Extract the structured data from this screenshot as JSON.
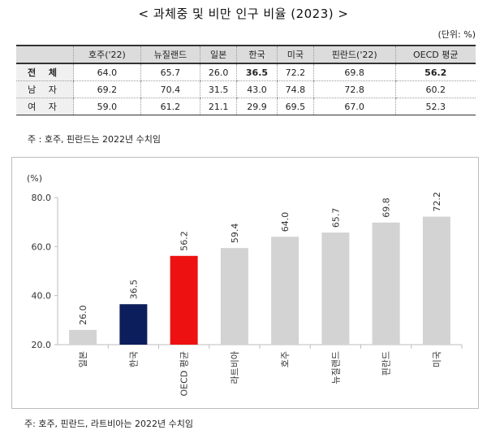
{
  "title": "< 과체중 및 비만 인구 비율 (2023) >",
  "unit": "(단위: %)",
  "table": {
    "headers": [
      "",
      "호주('22)",
      "뉴질랜드",
      "일본",
      "한국",
      "미국",
      "핀란드('22)",
      "OECD 평균"
    ],
    "rows": [
      {
        "label": "전 체",
        "values": [
          "64.0",
          "65.7",
          "26.0",
          "36.5",
          "72.2",
          "69.8",
          "56.2"
        ],
        "bold_cols": [
          3,
          6
        ]
      },
      {
        "label": "남 자",
        "values": [
          "69.2",
          "70.4",
          "31.5",
          "43.0",
          "74.8",
          "72.8",
          "60.2"
        ],
        "bold_cols": []
      },
      {
        "label": "여 자",
        "values": [
          "59.0",
          "61.2",
          "21.1",
          "29.9",
          "69.5",
          "67.0",
          "52.3"
        ],
        "bold_cols": []
      }
    ]
  },
  "note1": "주 : 호주, 핀란드는 2022년 수치임",
  "chart_data": {
    "type": "bar",
    "title": "",
    "ylabel": "(%)",
    "xlabel": "",
    "ylim": [
      20,
      80
    ],
    "yticks": [
      "20.0",
      "40.0",
      "60.0",
      "80.0"
    ],
    "ytick_values": [
      20,
      40,
      60,
      80
    ],
    "grid": false,
    "categories": [
      "일본",
      "한국",
      "OECD 평균",
      "라트비아",
      "호주",
      "뉴질랜드",
      "핀란드",
      "미국"
    ],
    "values": [
      26.0,
      36.5,
      56.2,
      59.4,
      64.0,
      65.7,
      69.8,
      72.2
    ],
    "value_labels": [
      "26.0",
      "36.5",
      "56.2",
      "59.4",
      "64.0",
      "65.7",
      "69.8",
      "72.2"
    ],
    "colors": [
      "#d3d3d3",
      "#0d1e5c",
      "#ee1111",
      "#d3d3d3",
      "#d3d3d3",
      "#d3d3d3",
      "#d3d3d3",
      "#d3d3d3"
    ]
  },
  "note2": "주: 호주, 핀란드, 라트비아는 2022년 수치임"
}
